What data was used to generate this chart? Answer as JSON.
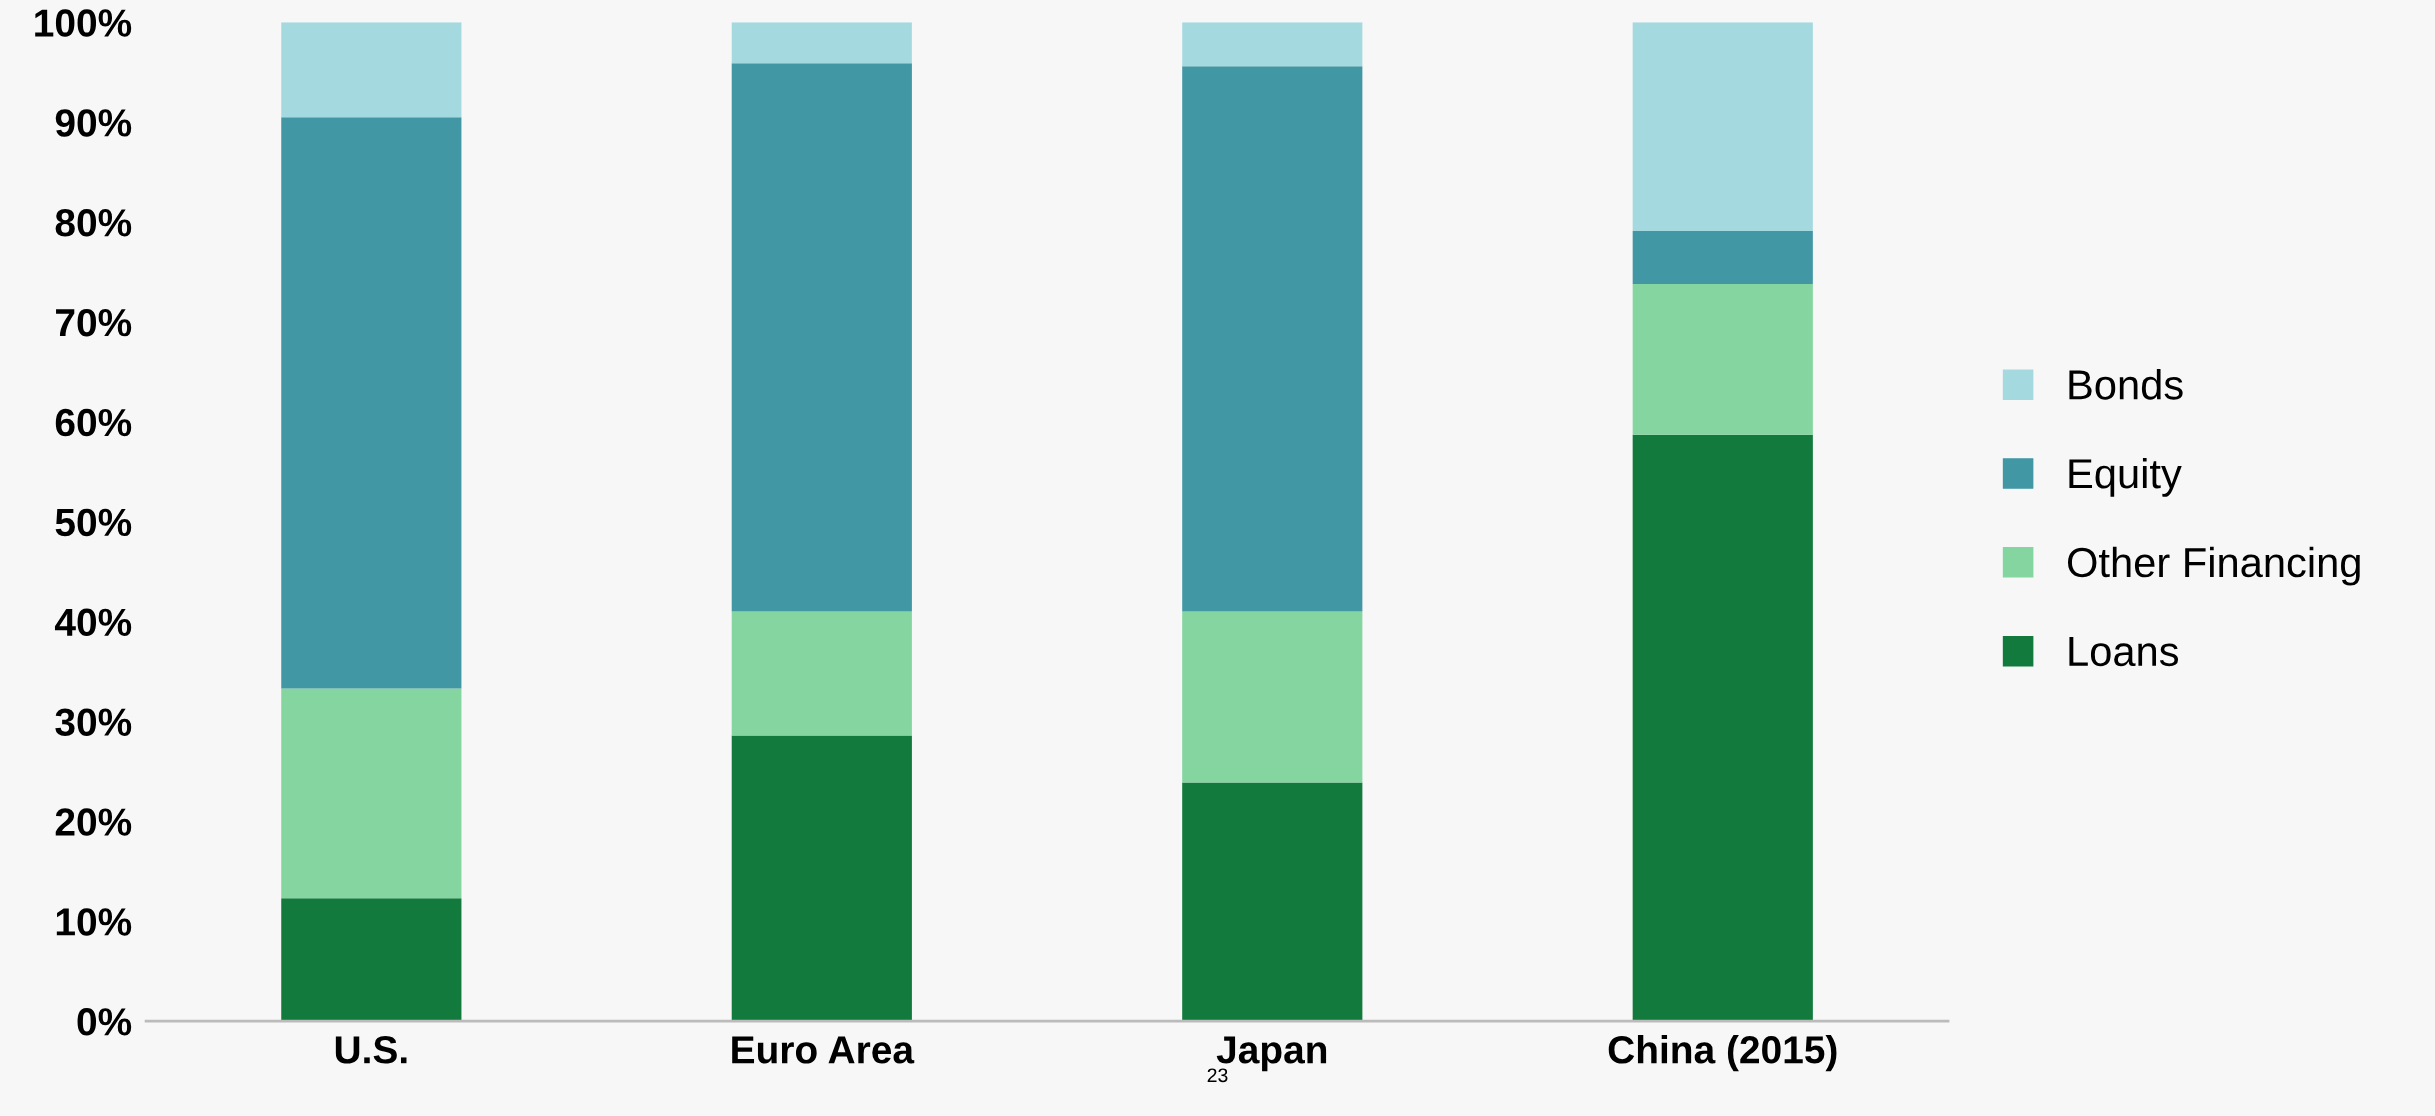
{
  "chart_data": {
    "type": "bar",
    "stacked": true,
    "categories": [
      "U.S.",
      "Euro Area",
      "Japan",
      "China (2015)"
    ],
    "series": [
      {
        "name": "Loans",
        "color": "#117a3c",
        "values": [
          12.3,
          28.6,
          23.9,
          58.7
        ]
      },
      {
        "name": "Other Financing",
        "color": "#84d5a0",
        "values": [
          21.0,
          12.4,
          17.1,
          15.1
        ]
      },
      {
        "name": "Equity",
        "color": "#4297a5",
        "values": [
          57.2,
          54.9,
          54.6,
          5.3
        ]
      },
      {
        "name": "Bonds",
        "color": "#a5d9e0",
        "values": [
          9.5,
          4.1,
          4.4,
          20.9
        ]
      }
    ],
    "ylim": [
      0,
      100
    ],
    "yticks": [
      {
        "value": 0,
        "label": "0%"
      },
      {
        "value": 10,
        "label": "10%"
      },
      {
        "value": 20,
        "label": "20%"
      },
      {
        "value": 30,
        "label": "30%"
      },
      {
        "value": 40,
        "label": "40%"
      },
      {
        "value": 50,
        "label": "50%"
      },
      {
        "value": 60,
        "label": "60%"
      },
      {
        "value": 70,
        "label": "70%"
      },
      {
        "value": 80,
        "label": "80%"
      },
      {
        "value": 90,
        "label": "90%"
      },
      {
        "value": 100,
        "label": "100%"
      }
    ],
    "legend": "right",
    "grid": false,
    "annotations": [
      "23"
    ]
  }
}
